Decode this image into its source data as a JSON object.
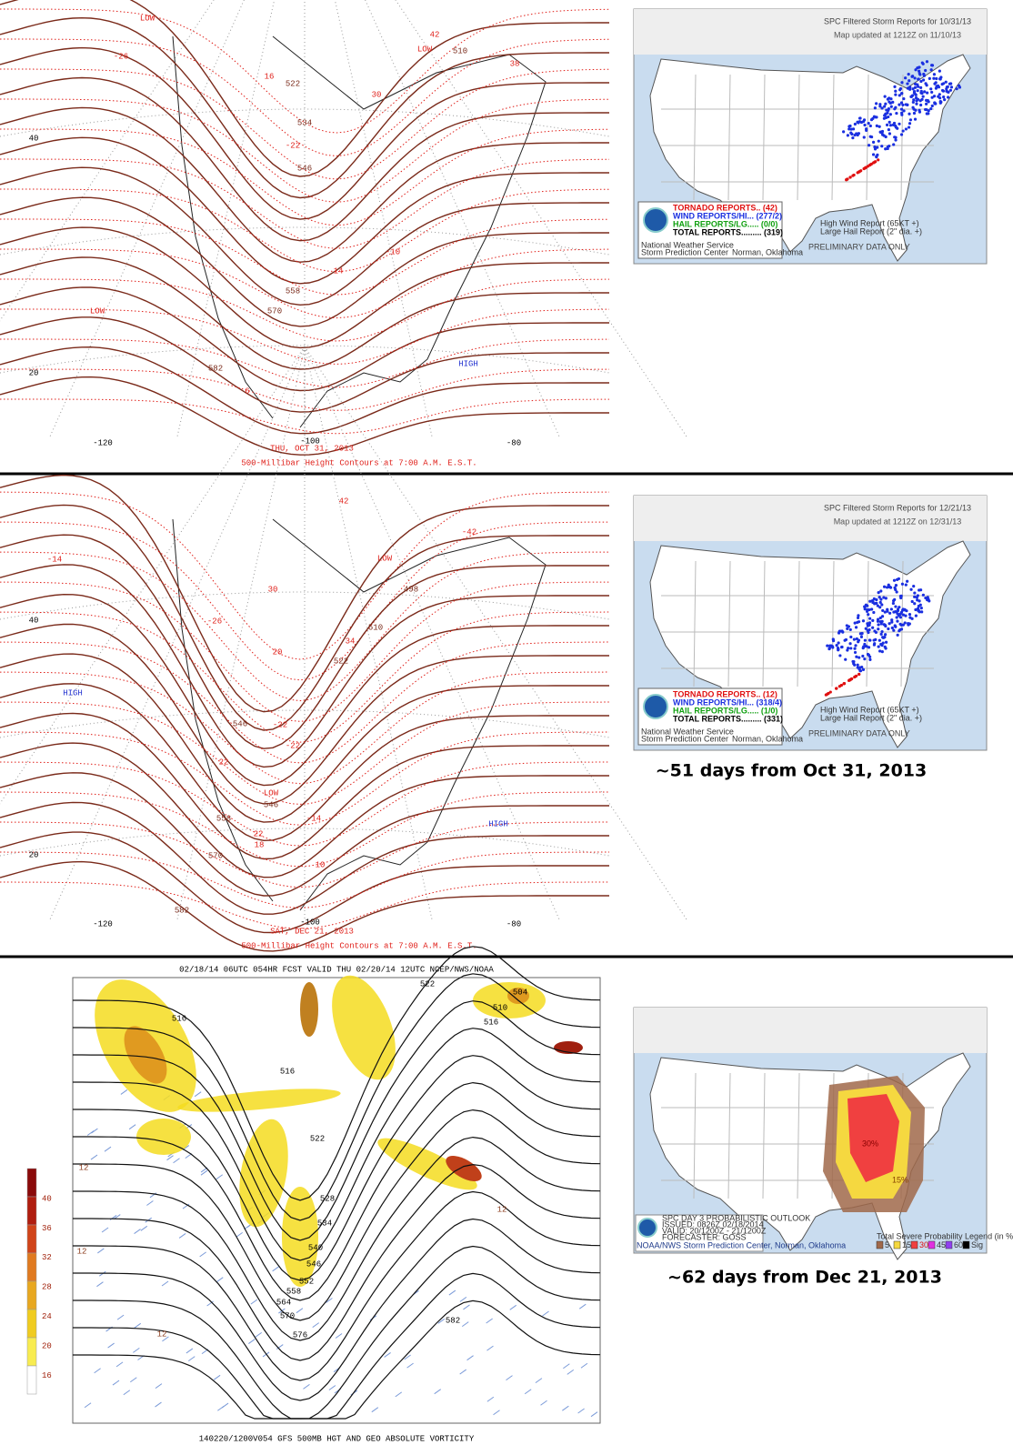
{
  "rows": [
    {
      "map": {
        "labels": [
          "LOW",
          "-26",
          "42",
          "LOW",
          "510",
          "38",
          "16",
          "522",
          "30",
          "534",
          "-22",
          "546",
          "-10",
          "14",
          "558",
          "570",
          "LOW",
          "HIGH",
          "582",
          "6",
          "40",
          "20",
          "-120",
          "-100",
          "-80"
        ],
        "date": "THU, OCT 31, 2013",
        "caption": "500-Millibar Height Contours at 7:00 A.M. E.S.T."
      },
      "reports": {
        "title": "SPC Filtered Storm Reports for 10/31/13",
        "updated": "Map updated at 1212Z on 11/10/13",
        "legend": [
          "TORNADO REPORTS.. (42)",
          "WIND REPORTS/HI... (277/2)",
          "HAIL REPORTS/LG..... (0/0)",
          "TOTAL REPORTS......... (319)"
        ],
        "key": [
          "High Wind Report (65KT +)",
          "Large Hail Report (2\" dia. +)"
        ],
        "agency": "National Weather Service",
        "center": "Storm Prediction Center",
        "place": "Norman, Oklahoma",
        "note": "PRELIMINARY DATA ONLY"
      }
    },
    {
      "map": {
        "labels": [
          "-14",
          "42",
          "LOW",
          "-42",
          "498",
          "-26",
          "30",
          "510",
          "34",
          "20",
          "522",
          "HIGH",
          "546",
          "-22",
          "-22",
          "22",
          "LOW",
          "546",
          "558",
          "-14",
          "HIGH",
          "22",
          "18",
          "570",
          "10",
          "582",
          "40",
          "20",
          "-120",
          "-100",
          "-80"
        ],
        "date": "SAT, DEC 21, 2013",
        "caption": "500-Millibar Height Contours at 7:00 A.M. E.S.T."
      },
      "reports": {
        "title": "SPC Filtered Storm Reports for 12/21/13",
        "updated": "Map updated at 1212Z on 12/31/13",
        "legend": [
          "TORNADO REPORTS.. (12)",
          "WIND REPORTS/HI... (318/4)",
          "HAIL REPORTS/LG..... (1/0)",
          "TOTAL REPORTS......... (331)"
        ],
        "key": [
          "High Wind Report (65KT +)",
          "Large Hail Report (2\" dia. +)"
        ],
        "agency": "National Weather Service",
        "center": "Storm Prediction Center",
        "place": "Norman, Oklahoma",
        "note": "PRELIMINARY DATA ONLY"
      },
      "comparison": "~51 days from Oct 31, 2013"
    },
    {
      "forecast": {
        "header": "02/18/14 06UTC  054HR  FCST VALID THU 02/20/14 12UTC  NCEP/NWS/NOAA",
        "footer": "140220/1200V054 GFS 500MB HGT AND GEO ABSOLUTE VORTICITY",
        "labels": [
          "522",
          "504",
          "510",
          "516",
          "516",
          "516",
          "522",
          "528",
          "534",
          "540",
          "546",
          "552",
          "558",
          "564",
          "570",
          "576",
          "582",
          "12",
          "12",
          "12",
          "12"
        ],
        "colorbar": [
          40,
          36,
          32,
          28,
          24,
          20,
          16
        ]
      },
      "outlook": {
        "title": "SPC DAY 3 PROBABILISTIC OUTLOOK",
        "issued": "ISSUED: 0826Z 02/18/2014",
        "valid": "VALID: 20/1200Z - 21/1200Z",
        "forecaster": "FORECASTER: GOSS",
        "credit": "NOAA/NWS Storm Prediction Center, Norman, Oklahoma",
        "legend_title": "Total Severe Probability Legend (in %)",
        "legend": [
          "5",
          "15",
          "30",
          "45",
          "60",
          "Sig"
        ],
        "areas": [
          "30%",
          "15%"
        ]
      },
      "comparison": "~62 days from Dec 21, 2013"
    }
  ]
}
